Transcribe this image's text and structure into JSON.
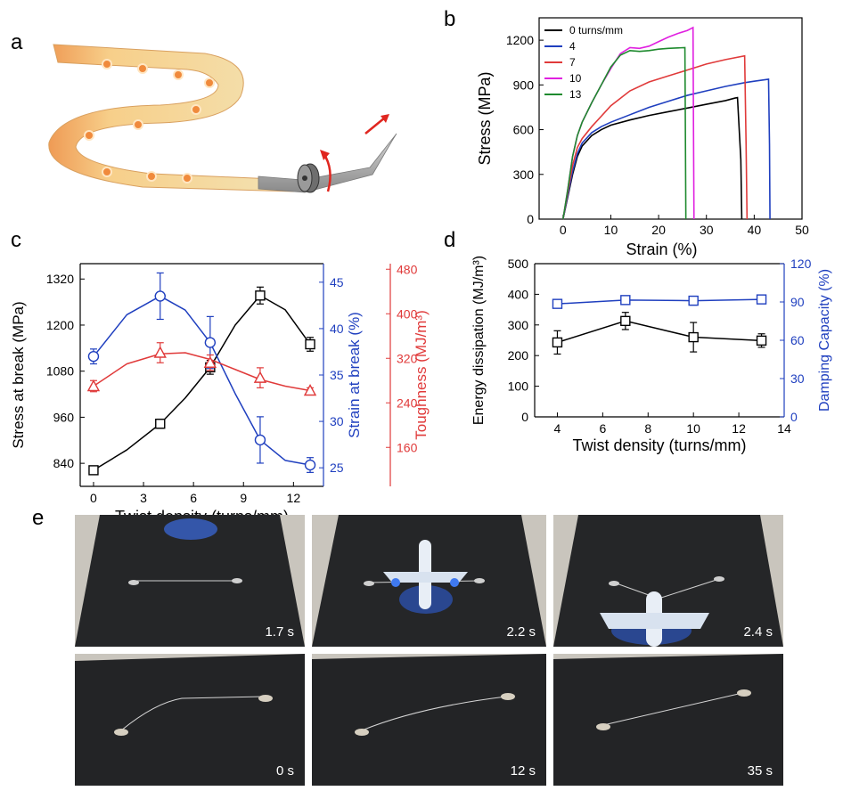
{
  "panels": {
    "a": "a",
    "b": "b",
    "c": "c",
    "d": "d",
    "e": "e"
  },
  "chart_data": [
    {
      "id": "b",
      "type": "line",
      "xlabel": "Strain (%)",
      "ylabel": "Stress (MPa)",
      "xlim": [
        -5,
        50
      ],
      "ylim": [
        0,
        1350
      ],
      "xticks": [
        0,
        10,
        20,
        30,
        40,
        50
      ],
      "yticks": [
        0,
        300,
        600,
        900,
        1200
      ],
      "legend_position": "top-left",
      "series": [
        {
          "name": "0 turns/mm",
          "color": "#000000",
          "x": [
            0,
            1,
            2,
            3,
            4,
            6,
            8,
            10,
            14,
            18,
            22,
            26,
            30,
            34,
            36,
            36.5,
            37.2,
            37.4
          ],
          "y": [
            0,
            150,
            300,
            420,
            490,
            560,
            600,
            630,
            665,
            695,
            720,
            745,
            770,
            795,
            812,
            815,
            400,
            0
          ]
        },
        {
          "name": "4",
          "color": "#1f3fbf",
          "x": [
            0,
            1,
            2,
            3,
            4,
            6,
            8,
            10,
            14,
            18,
            22,
            26,
            30,
            34,
            38,
            40,
            43,
            43.2,
            43.3
          ],
          "y": [
            0,
            160,
            320,
            440,
            510,
            580,
            620,
            650,
            700,
            750,
            790,
            830,
            860,
            890,
            915,
            925,
            938,
            500,
            0
          ]
        },
        {
          "name": "7",
          "color": "#e03a3a",
          "x": [
            0,
            1,
            2,
            3,
            4,
            6,
            8,
            10,
            14,
            18,
            22,
            26,
            30,
            34,
            38,
            38.3,
            38.5
          ],
          "y": [
            0,
            180,
            360,
            480,
            540,
            620,
            690,
            760,
            860,
            920,
            960,
            1000,
            1040,
            1070,
            1095,
            500,
            0
          ]
        },
        {
          "name": "10",
          "color": "#e020e0",
          "x": [
            0,
            1,
            2,
            3,
            4,
            6,
            8,
            10,
            12,
            14,
            16,
            18,
            20,
            22,
            24,
            26,
            27.2,
            27.3,
            27.4
          ],
          "y": [
            0,
            200,
            420,
            560,
            650,
            780,
            900,
            1010,
            1110,
            1150,
            1145,
            1160,
            1190,
            1220,
            1245,
            1265,
            1285,
            600,
            0
          ]
        },
        {
          "name": "13",
          "color": "#1e8a2e",
          "x": [
            0,
            1,
            2,
            3,
            4,
            6,
            8,
            10,
            12,
            14,
            16,
            18,
            20,
            22,
            24,
            25.5,
            25.6,
            25.7
          ],
          "y": [
            0,
            200,
            420,
            560,
            650,
            780,
            900,
            1020,
            1100,
            1130,
            1125,
            1130,
            1140,
            1145,
            1148,
            1150,
            600,
            0
          ]
        }
      ]
    },
    {
      "id": "c",
      "type": "line",
      "xlabel": "Twist density (turns/mm)",
      "x": [
        0,
        4,
        7,
        10,
        13
      ],
      "xticks": [
        0,
        3,
        6,
        9,
        12
      ],
      "xlim": [
        -0.8,
        13.8
      ],
      "axes": [
        {
          "label": "Stress at break (MPa)",
          "color": "#000000",
          "ylim": [
            780,
            1360
          ],
          "ticks": [
            840,
            960,
            1080,
            1200,
            1320
          ]
        },
        {
          "label": "Strain at break (%)",
          "color": "#1f3fbf",
          "ylim": [
            23,
            47
          ],
          "ticks": [
            25,
            30,
            35,
            40,
            45
          ]
        },
        {
          "label": "Toughness (MJ/m³)",
          "color": "#e03a3a",
          "ylim": [
            90,
            490
          ],
          "ticks": [
            160,
            240,
            320,
            400,
            480
          ]
        }
      ],
      "series": [
        {
          "name": "Stress at break",
          "axis": 0,
          "marker": "square",
          "color": "#000000",
          "values": [
            822,
            943,
            1090,
            1277,
            1150
          ],
          "errors": [
            8,
            12,
            18,
            22,
            18
          ],
          "fit_x": [
            0,
            2,
            4,
            5.5,
            7,
            8.5,
            10,
            11.5,
            13
          ],
          "fit_y": [
            822,
            875,
            943,
            1010,
            1090,
            1200,
            1277,
            1240,
            1150
          ]
        },
        {
          "name": "Strain at break",
          "axis": 1,
          "marker": "circle",
          "color": "#1f3fbf",
          "values": [
            37,
            43.5,
            38.5,
            28,
            25.3
          ],
          "errors": [
            0.8,
            2.5,
            2.8,
            2.5,
            0.8
          ],
          "fit_x": [
            0,
            2,
            4,
            5.5,
            7,
            8.5,
            10,
            11.5,
            13
          ],
          "fit_y": [
            37,
            41.5,
            43.5,
            42,
            38.5,
            33,
            28,
            25.8,
            25.3
          ]
        },
        {
          "name": "Toughness",
          "axis": 2,
          "marker": "triangle",
          "color": "#e03a3a",
          "values": [
            270,
            330,
            312,
            285,
            262
          ],
          "errors": [
            10,
            18,
            14,
            18,
            5
          ],
          "fit_x": [
            0,
            2,
            4,
            5.5,
            7,
            8.5,
            10,
            11.5,
            13
          ],
          "fit_y": [
            270,
            310,
            328,
            330,
            318,
            300,
            282,
            270,
            262
          ]
        }
      ]
    },
    {
      "id": "d",
      "type": "line",
      "xlabel": "Twist density (turns/mm)",
      "x": [
        4,
        7,
        10,
        13
      ],
      "xticks": [
        4,
        6,
        8,
        10,
        12,
        14
      ],
      "xlim": [
        3,
        14
      ],
      "axes": [
        {
          "label": "Energy dissipation (MJ/m³)",
          "color": "#000000",
          "ylim": [
            0,
            500
          ],
          "ticks": [
            0,
            100,
            200,
            300,
            400,
            500
          ]
        },
        {
          "label": "Damping Capacity (%)",
          "color": "#1f3fbf",
          "ylim": [
            0,
            120
          ],
          "ticks": [
            0,
            30,
            60,
            90,
            120
          ]
        }
      ],
      "series": [
        {
          "name": "Energy dissipation",
          "axis": 0,
          "marker": "square",
          "color": "#000000",
          "values": [
            243,
            313,
            260,
            249
          ],
          "errors": [
            38,
            28,
            48,
            22
          ]
        },
        {
          "name": "Damping Capacity",
          "axis": 1,
          "marker": "square",
          "color": "#1f3fbf",
          "values": [
            88.5,
            91.5,
            91,
            92
          ],
          "errors": [
            1.5,
            2.5,
            3.5,
            3
          ]
        }
      ]
    }
  ],
  "panel_e": {
    "frames": [
      {
        "time": "1.7 s"
      },
      {
        "time": "2.2 s"
      },
      {
        "time": "2.4 s"
      },
      {
        "time": "0 s"
      },
      {
        "time": "12 s"
      },
      {
        "time": "35 s"
      }
    ]
  }
}
